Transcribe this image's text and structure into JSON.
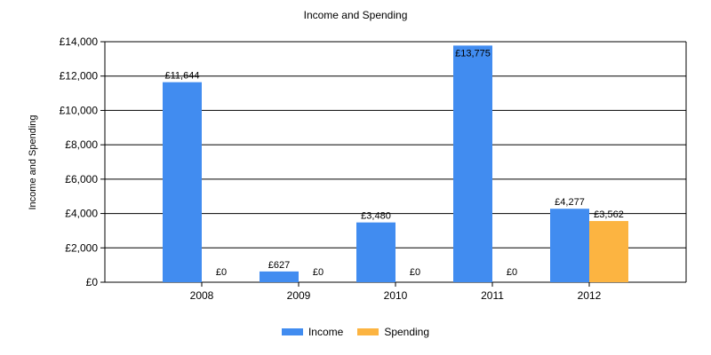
{
  "chart_data": {
    "type": "bar",
    "title": "Income and Spending",
    "ylabel": "Income and Spending",
    "xlabel": "",
    "categories": [
      "2008",
      "2009",
      "2010",
      "2011",
      "2012"
    ],
    "series": [
      {
        "name": "Income",
        "color": "#418cf0",
        "values": [
          11644,
          627,
          3480,
          13775,
          4277
        ],
        "labels": [
          "£11,644",
          "£627",
          "£3,480",
          "£13,775",
          "£4,277"
        ]
      },
      {
        "name": "Spending",
        "color": "#fcb441",
        "values": [
          0,
          0,
          0,
          0,
          3562
        ],
        "labels": [
          "£0",
          "£0",
          "£0",
          "£0",
          "£3,562"
        ]
      }
    ],
    "ylim": [
      0,
      14000
    ],
    "yticks": [
      0,
      2000,
      4000,
      6000,
      8000,
      10000,
      12000,
      14000
    ],
    "ytick_labels": [
      "£0",
      "£2,000",
      "£4,000",
      "£6,000",
      "£8,000",
      "£10,000",
      "£12,000",
      "£14,000"
    ],
    "grid": true,
    "legend_position": "bottom-center"
  }
}
